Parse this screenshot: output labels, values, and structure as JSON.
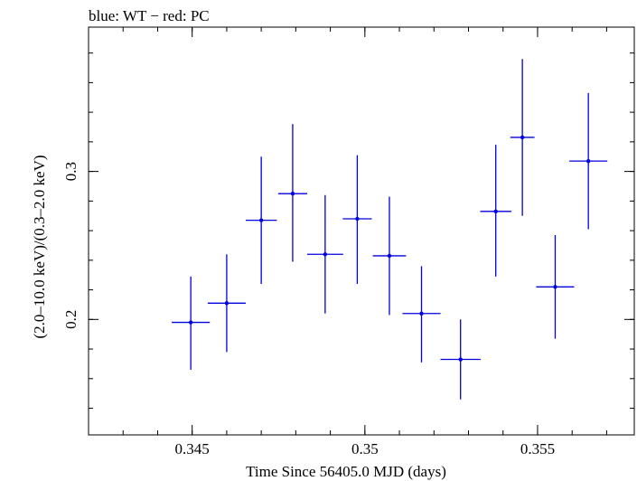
{
  "chart_data": {
    "type": "scatter",
    "title": "blue: WT − red: PC",
    "xlabel": "Time Since 56405.0 MJD (days)",
    "ylabel": "(2.0–10.0 keV)/(0.3–2.0 keV)",
    "xlim": [
      0.342,
      0.3578
    ],
    "ylim": [
      0.122,
      0.3975
    ],
    "x_ticks": [
      {
        "value": 0.345,
        "label": "0.345"
      },
      {
        "value": 0.35,
        "label": "0.35"
      },
      {
        "value": 0.355,
        "label": "0.355"
      }
    ],
    "y_ticks": [
      {
        "value": 0.2,
        "label": "0.2"
      },
      {
        "value": 0.3,
        "label": "0.3"
      }
    ],
    "x_minor_step": 0.001,
    "y_minor_step": 0.02,
    "grid": false,
    "series": [
      {
        "color": "#0000dd",
        "points": [
          {
            "x": 0.34496,
            "xerr": 0.00055,
            "y": 0.198,
            "yerr_low": 0.032,
            "yerr_high": 0.031
          },
          {
            "x": 0.346,
            "xerr": 0.00055,
            "y": 0.211,
            "yerr_low": 0.033,
            "yerr_high": 0.033
          },
          {
            "x": 0.347,
            "xerr": 0.00045,
            "y": 0.267,
            "yerr_low": 0.043,
            "yerr_high": 0.043
          },
          {
            "x": 0.34791,
            "xerr": 0.00042,
            "y": 0.285,
            "yerr_low": 0.046,
            "yerr_high": 0.047
          },
          {
            "x": 0.34885,
            "xerr": 0.00052,
            "y": 0.244,
            "yerr_low": 0.04,
            "yerr_high": 0.04
          },
          {
            "x": 0.34978,
            "xerr": 0.00042,
            "y": 0.268,
            "yerr_low": 0.044,
            "yerr_high": 0.043
          },
          {
            "x": 0.35071,
            "xerr": 0.00048,
            "y": 0.243,
            "yerr_low": 0.04,
            "yerr_high": 0.04
          },
          {
            "x": 0.35164,
            "xerr": 0.00055,
            "y": 0.204,
            "yerr_low": 0.033,
            "yerr_high": 0.032
          },
          {
            "x": 0.35277,
            "xerr": 0.00058,
            "y": 0.173,
            "yerr_low": 0.027,
            "yerr_high": 0.027
          },
          {
            "x": 0.35379,
            "xerr": 0.00045,
            "y": 0.273,
            "yerr_low": 0.044,
            "yerr_high": 0.045
          },
          {
            "x": 0.35456,
            "xerr": 0.00035,
            "y": 0.323,
            "yerr_low": 0.053,
            "yerr_high": 0.053
          },
          {
            "x": 0.35551,
            "xerr": 0.00055,
            "y": 0.222,
            "yerr_low": 0.035,
            "yerr_high": 0.035
          },
          {
            "x": 0.35647,
            "xerr": 0.00055,
            "y": 0.307,
            "yerr_low": 0.046,
            "yerr_high": 0.046
          }
        ]
      }
    ]
  }
}
